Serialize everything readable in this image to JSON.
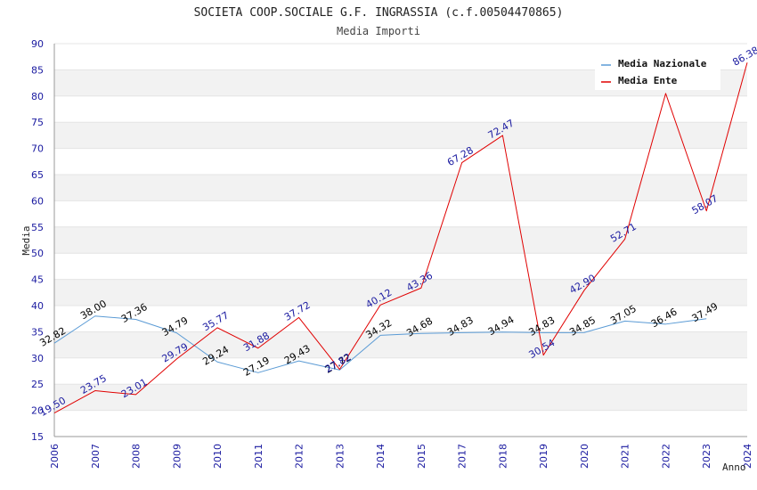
{
  "chart_data": {
    "type": "line",
    "title": "SOCIETA COOP.SOCIALE G.F. INGRASSIA (c.f.00504470865)",
    "subtitle": "Media Importi",
    "xlabel": "Anno",
    "ylabel": "Media",
    "ylim": [
      15,
      90
    ],
    "yticks": [
      "15",
      "20",
      "25",
      "30",
      "35",
      "40",
      "45",
      "50",
      "55",
      "60",
      "65",
      "70",
      "75",
      "80",
      "85",
      "90"
    ],
    "x": [
      "2006",
      "2007",
      "2008",
      "2009",
      "2010",
      "2011",
      "2012",
      "2013",
      "2014",
      "2015",
      "2017",
      "2018",
      "2019",
      "2020",
      "2021",
      "2022",
      "2023",
      "2024"
    ],
    "legend_position": "top-right",
    "grid": "alternating horizontal bands",
    "series": [
      {
        "name": "Media Nazionale",
        "color": "#5b9bd5",
        "label_color": "#000000",
        "values": [
          32.82,
          38.0,
          37.36,
          34.79,
          29.24,
          27.19,
          29.43,
          27.72,
          34.32,
          34.68,
          34.83,
          34.94,
          34.83,
          34.85,
          37.05,
          36.46,
          37.49,
          null
        ],
        "labels": [
          "32.82",
          "38.00",
          "37.36",
          "34.79",
          "29.24",
          "27.19",
          "29.43",
          "27.72",
          "34.32",
          "34.68",
          "34.83",
          "34.94",
          "34.83",
          "34.85",
          "37.05",
          "36.46",
          "37.49",
          ""
        ]
      },
      {
        "name": "Media Ente",
        "color": "#e00000",
        "label_color": "#1a1aa0",
        "values": [
          19.5,
          23.75,
          23.01,
          29.79,
          35.77,
          31.88,
          37.72,
          27.82,
          40.12,
          43.36,
          67.28,
          72.47,
          30.54,
          42.9,
          52.71,
          80.5,
          58.07,
          86.38
        ],
        "labels": [
          "19.50",
          "23.75",
          "23.01",
          "29.79",
          "35.77",
          "31.88",
          "37.72",
          "27.82",
          "40.12",
          "43.36",
          "67.28",
          "72.47",
          "30.54",
          "42.90",
          "52.71",
          "",
          "58.07",
          "86.38"
        ]
      }
    ]
  }
}
